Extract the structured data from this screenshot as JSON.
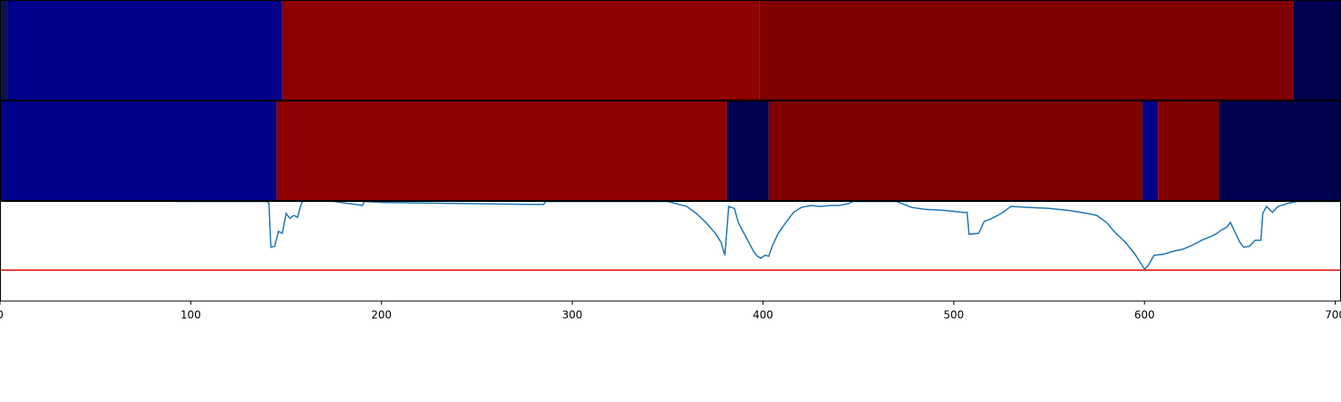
{
  "chart_data": [
    {
      "type": "segments",
      "xlim": [
        0,
        703
      ],
      "segments": [
        {
          "start": 0,
          "end": 4,
          "color": "#0a1450"
        },
        {
          "start": 4,
          "end": 148,
          "color": "#00008b"
        },
        {
          "start": 148,
          "end": 398,
          "color": "#8f0000"
        },
        {
          "start": 398,
          "end": 678,
          "color": "#800000"
        },
        {
          "start": 678,
          "end": 703,
          "color": "#000050"
        }
      ]
    },
    {
      "type": "segments",
      "xlim": [
        0,
        703
      ],
      "segments": [
        {
          "start": 0,
          "end": 145,
          "color": "#00008b"
        },
        {
          "start": 145,
          "end": 381,
          "color": "#8f0000"
        },
        {
          "start": 381,
          "end": 403,
          "color": "#000050"
        },
        {
          "start": 403,
          "end": 599,
          "color": "#800000"
        },
        {
          "start": 599,
          "end": 607,
          "color": "#00008b"
        },
        {
          "start": 607,
          "end": 639,
          "color": "#800000"
        },
        {
          "start": 639,
          "end": 703,
          "color": "#000050"
        }
      ]
    },
    {
      "type": "line",
      "xlim": [
        0,
        703
      ],
      "ylim": [
        0,
        1
      ],
      "color": "#1f77b4",
      "threshold": 0.31,
      "threshold_color": "#e00000",
      "xticks": [
        0,
        100,
        200,
        300,
        400,
        500,
        600,
        700
      ],
      "x": [
        0,
        50,
        94,
        120,
        140,
        141,
        142,
        144,
        146,
        148,
        150,
        152,
        154,
        156,
        158,
        160,
        175,
        190,
        191,
        200,
        240,
        280,
        285,
        286,
        320,
        350,
        360,
        365,
        370,
        375,
        378,
        380,
        382,
        385,
        387,
        390,
        392,
        395,
        397,
        399,
        401,
        403,
        405,
        408,
        412,
        416,
        420,
        425,
        430,
        435,
        440,
        445,
        447,
        460,
        470,
        478,
        485,
        495,
        500,
        505,
        507,
        508,
        513,
        516,
        520,
        525,
        530,
        540,
        550,
        560,
        570,
        575,
        580,
        585,
        590,
        595,
        598,
        600,
        602,
        605,
        610,
        615,
        620,
        625,
        630,
        635,
        638,
        640,
        643,
        645,
        647,
        650,
        652,
        655,
        658,
        661,
        662,
        664,
        667,
        670,
        675,
        680,
        690,
        703
      ],
      "values": [
        1.02,
        1.02,
        1.0,
        1.0,
        1.0,
        0.98,
        0.54,
        0.55,
        0.7,
        0.68,
        0.88,
        0.83,
        0.86,
        0.84,
        0.98,
        1.04,
        1.0,
        0.96,
        1.0,
        0.99,
        0.98,
        0.97,
        0.97,
        1.0,
        1.0,
        1.0,
        0.95,
        0.88,
        0.79,
        0.68,
        0.59,
        0.46,
        0.95,
        0.93,
        0.79,
        0.68,
        0.61,
        0.5,
        0.45,
        0.43,
        0.46,
        0.45,
        0.56,
        0.68,
        0.79,
        0.89,
        0.94,
        0.96,
        0.95,
        0.96,
        0.96,
        0.98,
        1.0,
        1.0,
        1.0,
        0.94,
        0.92,
        0.91,
        0.9,
        0.89,
        0.89,
        0.67,
        0.68,
        0.8,
        0.83,
        0.88,
        0.95,
        0.94,
        0.93,
        0.91,
        0.88,
        0.86,
        0.79,
        0.68,
        0.59,
        0.47,
        0.38,
        0.32,
        0.36,
        0.46,
        0.47,
        0.5,
        0.52,
        0.56,
        0.61,
        0.65,
        0.68,
        0.71,
        0.74,
        0.79,
        0.71,
        0.59,
        0.54,
        0.55,
        0.61,
        0.61,
        0.88,
        0.95,
        0.89,
        0.95,
        0.98,
        1.0,
        1.0,
        1.0
      ]
    }
  ]
}
